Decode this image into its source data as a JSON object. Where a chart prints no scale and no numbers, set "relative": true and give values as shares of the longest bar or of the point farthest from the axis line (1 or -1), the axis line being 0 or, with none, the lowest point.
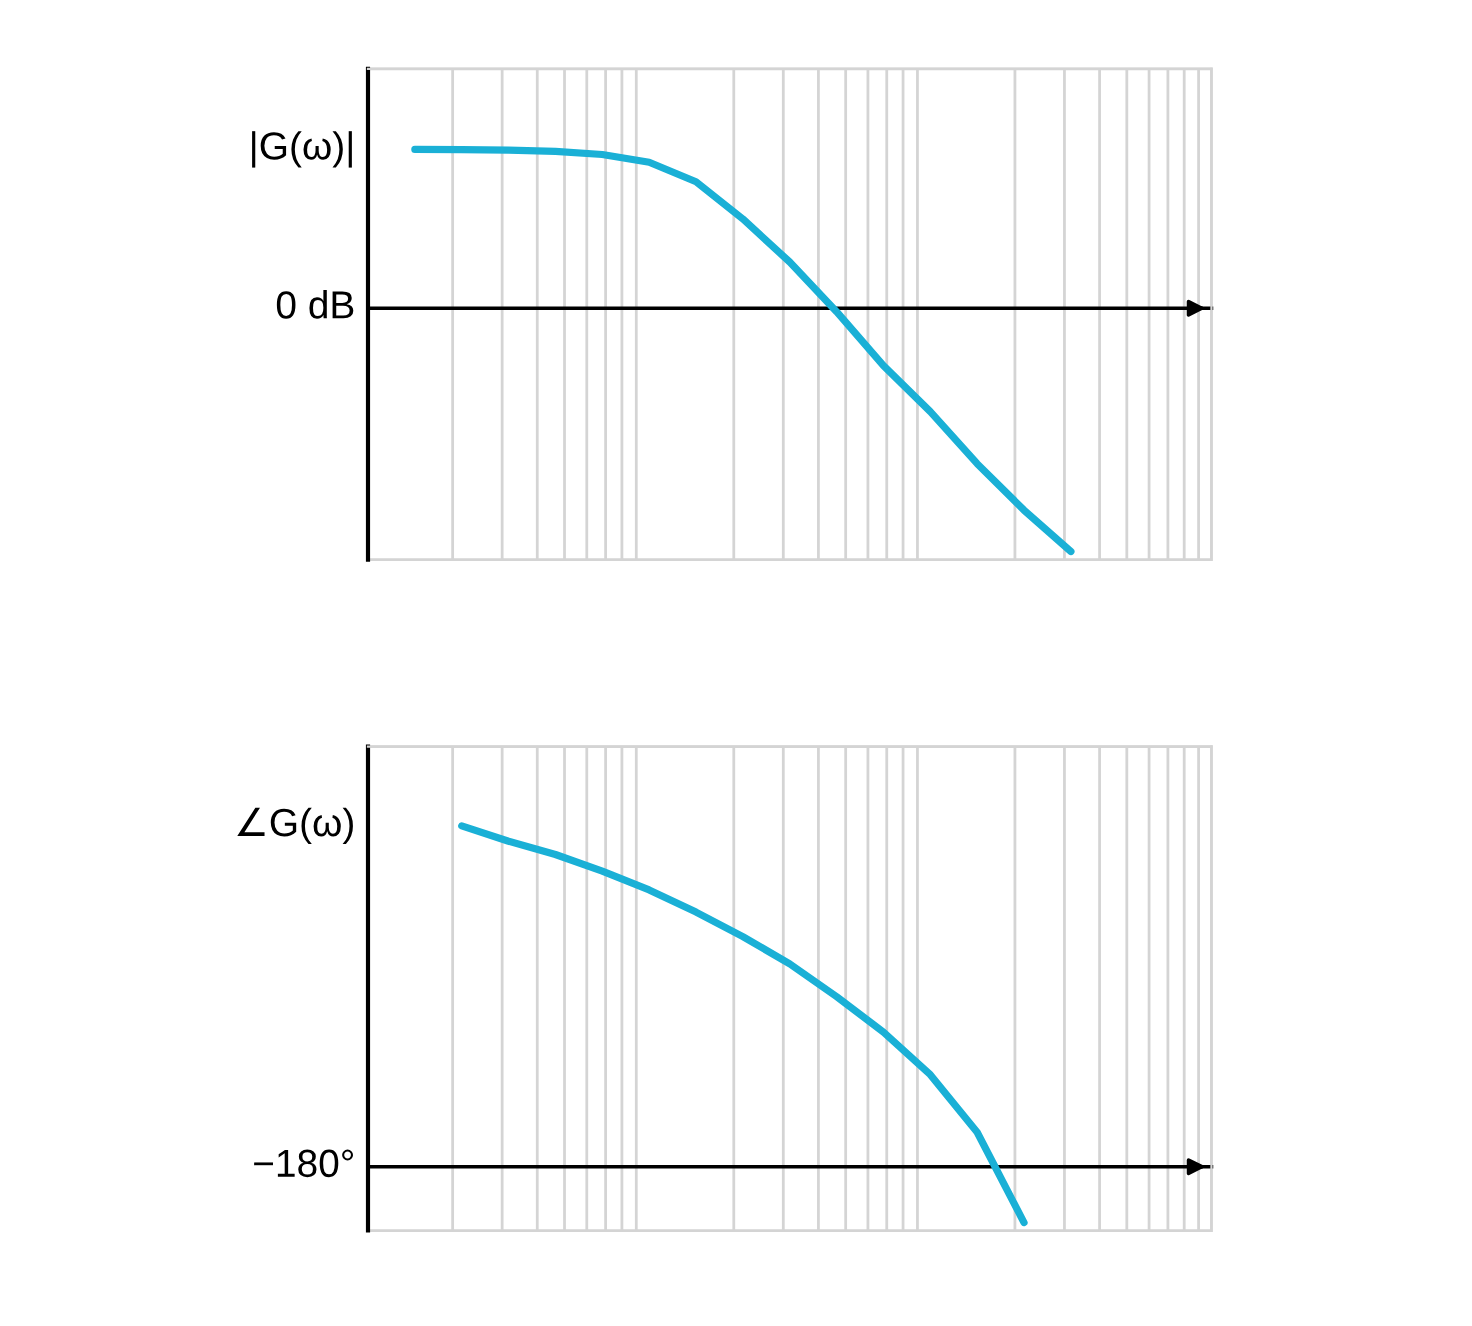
{
  "chart_data": [
    {
      "type": "line",
      "relative": true,
      "grid": "x",
      "ylabel": "|G(ω)|",
      "annotations": [
        "0 dB"
      ],
      "categories": [
        null,
        null,
        null,
        null,
        null,
        null,
        null,
        null,
        null,
        null,
        null,
        null,
        null,
        null,
        null,
        null,
        null,
        null,
        null
      ],
      "series": [
        {
          "color": "#1ab0d6",
          "values": [
            null,
            0.653,
            0.652,
            0.65,
            0.645,
            0.632,
            0.6,
            0.52,
            0.367,
            0.19,
            -0.014,
            -0.236,
            -0.425,
            -0.639,
            -0.83,
            -1,
            null,
            null,
            null
          ]
        }
      ]
    },
    {
      "type": "line",
      "relative": true,
      "grid": "x",
      "ylabel": "∠G(ω)",
      "annotations": [
        "−180°"
      ],
      "categories": [
        null,
        null,
        null,
        null,
        null,
        null,
        null,
        null,
        null,
        null,
        null,
        null,
        null,
        null,
        null,
        null,
        null,
        null,
        null
      ],
      "series": [
        {
          "color": "#1ab0d6",
          "values": [
            null,
            null,
            1.0,
            0.955,
            0.916,
            0.867,
            0.812,
            0.747,
            0.675,
            0.595,
            0.499,
            0.395,
            0.27,
            0.101,
            -0.164,
            null,
            null,
            null,
            null
          ]
        }
      ]
    }
  ]
}
